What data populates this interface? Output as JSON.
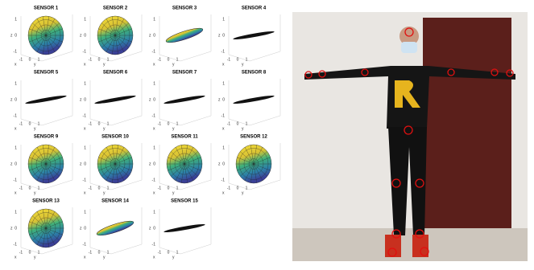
{
  "axes": {
    "x_label": "x",
    "y_label": "y",
    "z_label": "z",
    "ticks": [
      "-1",
      "0",
      "1"
    ]
  },
  "panels": [
    {
      "title": "SENSOR 1",
      "shape": "sphere"
    },
    {
      "title": "SENSOR 2",
      "shape": "sphere"
    },
    {
      "title": "SENSOR 3",
      "shape": "tilted"
    },
    {
      "title": "SENSOR 4",
      "shape": "flat"
    },
    {
      "title": "SENSOR 5",
      "shape": "flat"
    },
    {
      "title": "SENSOR 6",
      "shape": "flat"
    },
    {
      "title": "SENSOR 7",
      "shape": "flat"
    },
    {
      "title": "SENSOR 8",
      "shape": "flat"
    },
    {
      "title": "SENSOR 9",
      "shape": "sphere"
    },
    {
      "title": "SENSOR 10",
      "shape": "sphere"
    },
    {
      "title": "SENSOR 11",
      "shape": "sphere"
    },
    {
      "title": "SENSOR 12",
      "shape": "sphere"
    },
    {
      "title": "SENSOR 13",
      "shape": "sphere"
    },
    {
      "title": "SENSOR 14",
      "shape": "tilted"
    },
    {
      "title": "SENSOR 15",
      "shape": "flat"
    }
  ]
}
